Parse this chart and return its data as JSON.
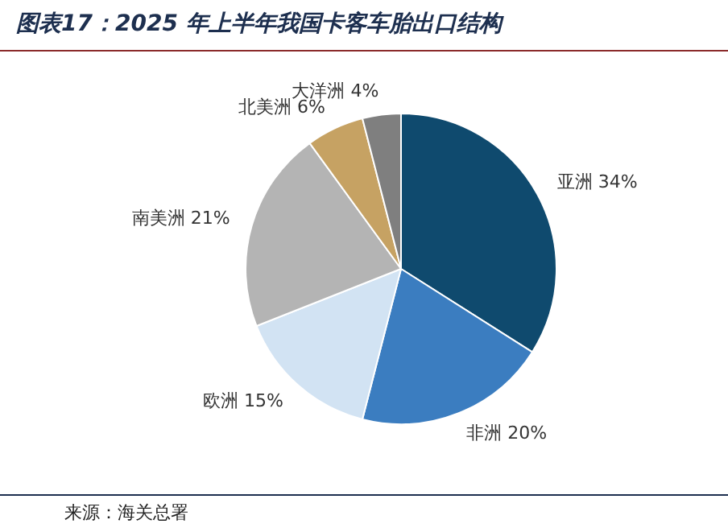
{
  "chart_data": {
    "type": "pie",
    "title": "图表17：2025 年上半年我国卡客车胎出口结构",
    "categories": [
      "亚洲",
      "非洲",
      "欧洲",
      "南美洲",
      "北美洲",
      "大洋洲"
    ],
    "values": [
      34,
      20,
      15,
      21,
      6,
      4
    ],
    "colors": [
      "#0f4a6e",
      "#3b7dc0",
      "#d2e3f3",
      "#b4b4b4",
      "#c6a263",
      "#7f7f7f"
    ],
    "value_labels": [
      "34%",
      "20%",
      "15%",
      "21%",
      "6%",
      "4%"
    ],
    "annotations": [
      "来源：海关总署"
    ]
  }
}
